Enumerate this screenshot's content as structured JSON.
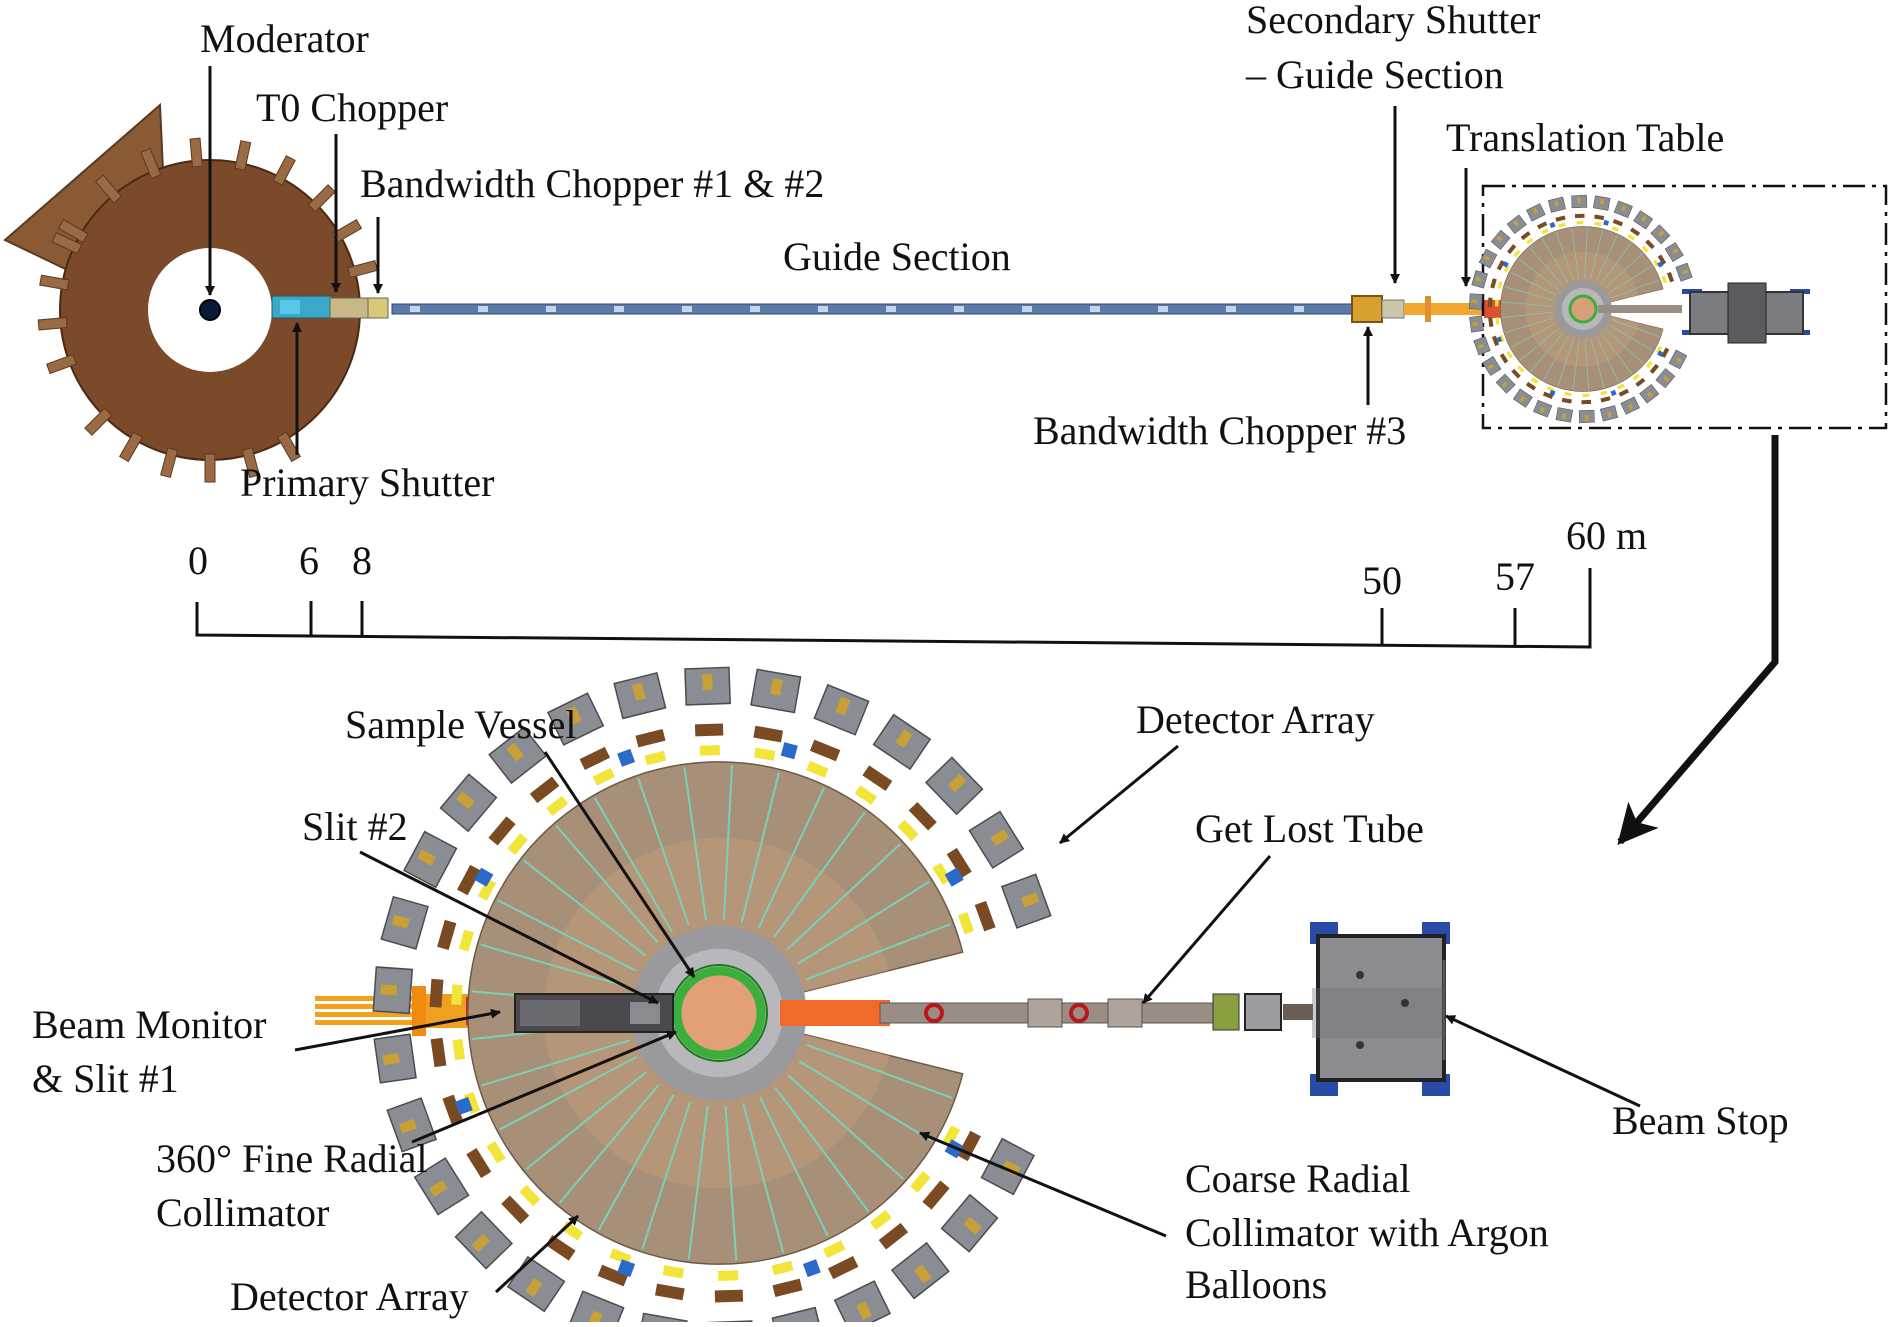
{
  "labels": {
    "moderator": "Moderator",
    "t0_chopper": "T0 Chopper",
    "bandwidth_chopper_12": "Bandwidth Chopper #1 & #2",
    "guide_section": "Guide Section",
    "secondary_shutter_line1": "Secondary Shutter",
    "secondary_shutter_line2": "– Guide Section",
    "translation_table": "Translation Table",
    "primary_shutter": "Primary Shutter",
    "bandwidth_chopper_3": "Bandwidth Chopper #3",
    "sample_vessel": "Sample Vessel",
    "detector_array_top": "Detector Array",
    "slit_2": "Slit #2",
    "get_lost_tube": "Get Lost Tube",
    "beam_monitor_line1": "Beam Monitor",
    "beam_monitor_line2": "& Slit #1",
    "fine_collimator_line1": "360° Fine Radial",
    "fine_collimator_line2": "Collimator",
    "beam_stop": "Beam Stop",
    "coarse_collimator_line1": "Coarse Radial",
    "coarse_collimator_line2": "Collimator with Argon",
    "coarse_collimator_line3": "Balloons",
    "detector_array_bottom": "Detector Array"
  },
  "scale": {
    "ticks": [
      "0",
      "6",
      "8",
      "50",
      "57",
      "60 m"
    ]
  },
  "colors": {
    "shielding": "#7a4a2a",
    "guide": "#5b7aa8",
    "detector_gray": "#8a8d93",
    "detector_yellow": "#f2e53a",
    "collimator_tan": "#a89078",
    "sample_green": "#3cae3c",
    "beam_orange": "#f39a1c",
    "beam_stop_blue": "#2a4aa8"
  }
}
